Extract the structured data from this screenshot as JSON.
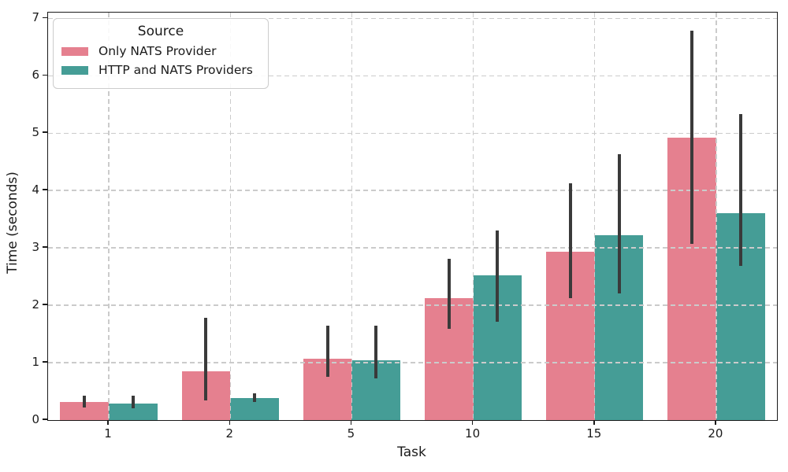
{
  "legend": {
    "title": "Source"
  },
  "chart_data": {
    "type": "bar",
    "title": "",
    "xlabel": "Task",
    "ylabel": "Time (seconds)",
    "categories": [
      "1",
      "2",
      "5",
      "10",
      "15",
      "20"
    ],
    "series": [
      {
        "name": "Only NATS Provider",
        "color": "#e5808f",
        "values": [
          0.31,
          0.85,
          1.07,
          2.12,
          2.93,
          4.92
        ],
        "err_low": [
          0.22,
          0.34,
          0.76,
          1.59,
          2.12,
          3.07
        ],
        "err_high": [
          0.43,
          1.78,
          1.65,
          2.81,
          4.12,
          6.79
        ]
      },
      {
        "name": "HTTP and NATS Providers",
        "color": "#459d96",
        "values": [
          0.29,
          0.38,
          1.04,
          2.52,
          3.22,
          3.61
        ],
        "err_low": [
          0.2,
          0.32,
          0.73,
          1.71,
          2.21,
          2.68
        ],
        "err_high": [
          0.42,
          0.46,
          1.64,
          3.31,
          4.63,
          5.33
        ]
      }
    ],
    "ylim": [
      0,
      7.1
    ],
    "yticks": [
      0,
      1,
      2,
      3,
      4,
      5,
      6,
      7
    ],
    "grid": "dashed, both axes, drawn above bars",
    "legend_position": "upper left",
    "error_bar_color": "#3a3a3a",
    "bar_group_width_fraction": 0.8
  }
}
